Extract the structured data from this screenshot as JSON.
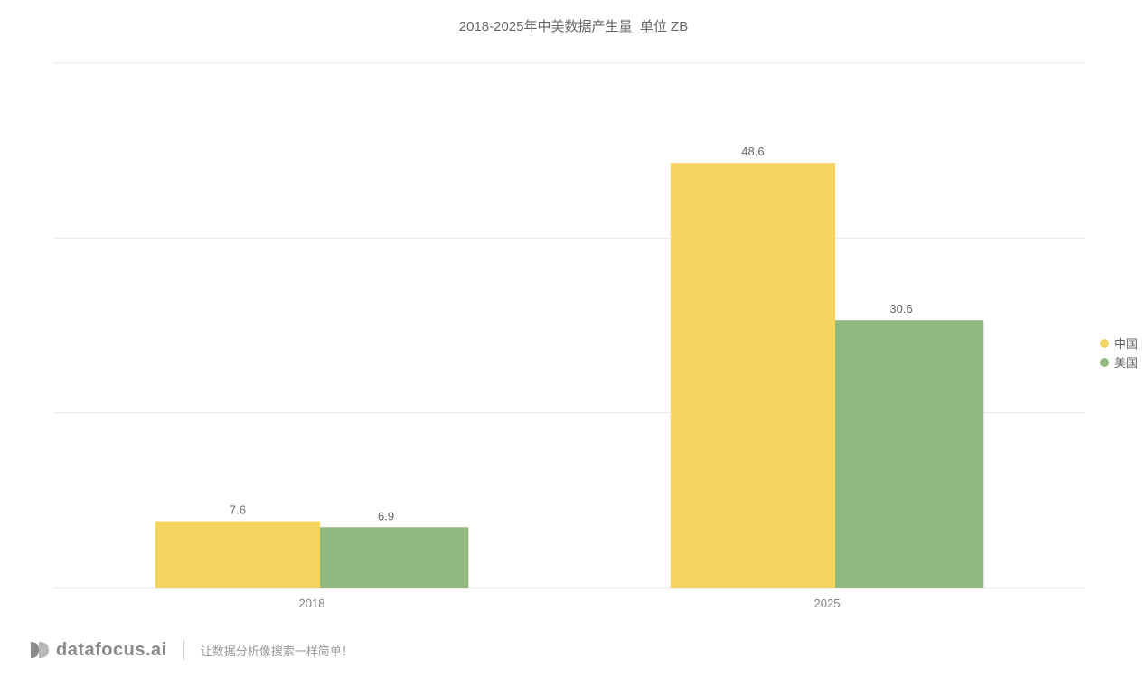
{
  "chart": {
    "type": "bar",
    "title": "2018-2025年中美数据产生量_单位 ZB",
    "title_fontsize": 15,
    "title_color": "#666666",
    "categories": [
      "2018",
      "2025"
    ],
    "series": [
      {
        "name": "中国",
        "color": "#f4d35e",
        "values": [
          7.6,
          48.6
        ]
      },
      {
        "name": "美国",
        "color": "#90b77d",
        "values": [
          6.9,
          30.6
        ]
      }
    ],
    "ylim": [
      0,
      60
    ],
    "ytick_step": 20,
    "yticks": [
      0,
      20,
      40,
      60
    ],
    "background_color": "#ffffff",
    "grid_color": "#e8e8e8",
    "axis_label_color": "#808080",
    "axis_label_fontsize": 13,
    "value_label_color": "#666666",
    "value_label_fontsize": 13,
    "bar_gap": 0.04,
    "group_gap": 0.5,
    "overlap": 0.08
  },
  "legend": {
    "items": [
      {
        "label": "中国",
        "color": "#f4d35e"
      },
      {
        "label": "美国",
        "color": "#90b77d"
      }
    ],
    "fontsize": 13,
    "text_color": "#666666"
  },
  "footer": {
    "brand": "datafocus.ai",
    "tagline": "让数据分析像搜索一样简单！",
    "brand_color": "#888888",
    "tagline_color": "#999999"
  }
}
